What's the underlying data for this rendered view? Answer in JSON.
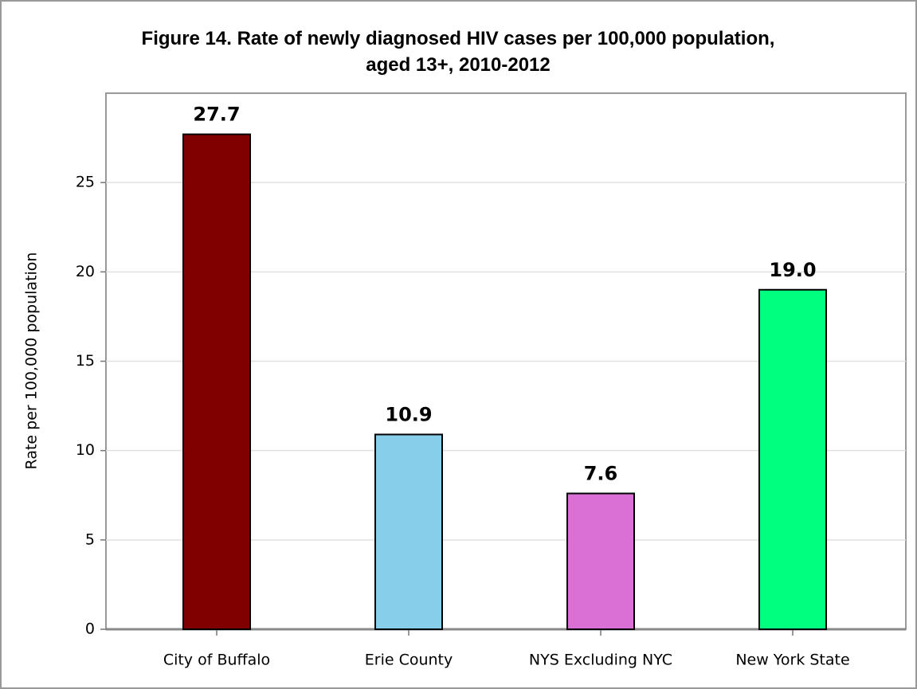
{
  "chart_data": {
    "type": "bar",
    "title": "Figure 14. Rate of newly diagnosed HIV cases per 100,000 population, aged 13+, 2010-2012",
    "y_label": "Rate per 100,000 population",
    "categories": [
      "City of Buffalo",
      "Erie County",
      "NYS Excluding NYC",
      "New York State"
    ],
    "values": [
      27.7,
      10.9,
      7.6,
      19.0
    ],
    "value_labels": [
      "27.7",
      "10.9",
      "7.6",
      "19.0"
    ],
    "colors": [
      "#800000",
      "#87ceeb",
      "#da70d6",
      "#00ff7f"
    ],
    "ylim": [
      0,
      30
    ],
    "yticks": [
      0,
      5,
      10,
      15,
      20,
      25
    ],
    "grid": true
  }
}
